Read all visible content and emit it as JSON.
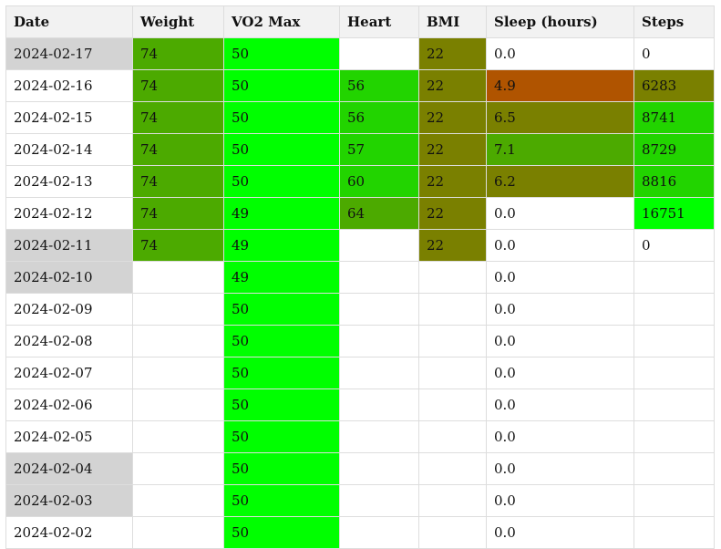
{
  "colors": {
    "header_bg": "#f2f2f2",
    "date_missing_bg": "#d3d3d3",
    "empty_bg": "#ffffff",
    "good_bright": "#00ff00",
    "good_mid": "#22d400",
    "good_dark": "#4caa00",
    "neutral_olive": "#7a8000",
    "bad_orange": "#b05400"
  },
  "table": {
    "headers": [
      "Date",
      "Weight",
      "VO2 Max",
      "Heart",
      "BMI",
      "Sleep (hours)",
      "Steps"
    ],
    "rows": [
      {
        "date": "2024-02-17",
        "date_bg": "#d3d3d3",
        "weight": "74",
        "weight_bg": "#4caa00",
        "vo2": "50",
        "vo2_bg": "#00ff00",
        "heart": "",
        "heart_bg": "#ffffff",
        "bmi": "22",
        "bmi_bg": "#7a8000",
        "sleep": "0.0",
        "sleep_bg": "#ffffff",
        "steps": "0",
        "steps_bg": "#ffffff"
      },
      {
        "date": "2024-02-16",
        "date_bg": "#ffffff",
        "weight": "74",
        "weight_bg": "#4caa00",
        "vo2": "50",
        "vo2_bg": "#00ff00",
        "heart": "56",
        "heart_bg": "#22d400",
        "bmi": "22",
        "bmi_bg": "#7a8000",
        "sleep": "4.9",
        "sleep_bg": "#b05400",
        "steps": "6283",
        "steps_bg": "#7a8000"
      },
      {
        "date": "2024-02-15",
        "date_bg": "#ffffff",
        "weight": "74",
        "weight_bg": "#4caa00",
        "vo2": "50",
        "vo2_bg": "#00ff00",
        "heart": "56",
        "heart_bg": "#22d400",
        "bmi": "22",
        "bmi_bg": "#7a8000",
        "sleep": "6.5",
        "sleep_bg": "#7a8000",
        "steps": "8741",
        "steps_bg": "#22d400"
      },
      {
        "date": "2024-02-14",
        "date_bg": "#ffffff",
        "weight": "74",
        "weight_bg": "#4caa00",
        "vo2": "50",
        "vo2_bg": "#00ff00",
        "heart": "57",
        "heart_bg": "#22d400",
        "bmi": "22",
        "bmi_bg": "#7a8000",
        "sleep": "7.1",
        "sleep_bg": "#4caa00",
        "steps": "8729",
        "steps_bg": "#22d400"
      },
      {
        "date": "2024-02-13",
        "date_bg": "#ffffff",
        "weight": "74",
        "weight_bg": "#4caa00",
        "vo2": "50",
        "vo2_bg": "#00ff00",
        "heart": "60",
        "heart_bg": "#22d400",
        "bmi": "22",
        "bmi_bg": "#7a8000",
        "sleep": "6.2",
        "sleep_bg": "#7a8000",
        "steps": "8816",
        "steps_bg": "#22d400"
      },
      {
        "date": "2024-02-12",
        "date_bg": "#ffffff",
        "weight": "74",
        "weight_bg": "#4caa00",
        "vo2": "49",
        "vo2_bg": "#00ff00",
        "heart": "64",
        "heart_bg": "#4caa00",
        "bmi": "22",
        "bmi_bg": "#7a8000",
        "sleep": "0.0",
        "sleep_bg": "#ffffff",
        "steps": "16751",
        "steps_bg": "#00ff00"
      },
      {
        "date": "2024-02-11",
        "date_bg": "#d3d3d3",
        "weight": "74",
        "weight_bg": "#4caa00",
        "vo2": "49",
        "vo2_bg": "#00ff00",
        "heart": "",
        "heart_bg": "#ffffff",
        "bmi": "22",
        "bmi_bg": "#7a8000",
        "sleep": "0.0",
        "sleep_bg": "#ffffff",
        "steps": "0",
        "steps_bg": "#ffffff"
      },
      {
        "date": "2024-02-10",
        "date_bg": "#d3d3d3",
        "weight": "",
        "weight_bg": "#ffffff",
        "vo2": "49",
        "vo2_bg": "#00ff00",
        "heart": "",
        "heart_bg": "#ffffff",
        "bmi": "",
        "bmi_bg": "#ffffff",
        "sleep": "0.0",
        "sleep_bg": "#ffffff",
        "steps": "",
        "steps_bg": "#ffffff"
      },
      {
        "date": "2024-02-09",
        "date_bg": "#ffffff",
        "weight": "",
        "weight_bg": "#ffffff",
        "vo2": "50",
        "vo2_bg": "#00ff00",
        "heart": "",
        "heart_bg": "#ffffff",
        "bmi": "",
        "bmi_bg": "#ffffff",
        "sleep": "0.0",
        "sleep_bg": "#ffffff",
        "steps": "",
        "steps_bg": "#ffffff"
      },
      {
        "date": "2024-02-08",
        "date_bg": "#ffffff",
        "weight": "",
        "weight_bg": "#ffffff",
        "vo2": "50",
        "vo2_bg": "#00ff00",
        "heart": "",
        "heart_bg": "#ffffff",
        "bmi": "",
        "bmi_bg": "#ffffff",
        "sleep": "0.0",
        "sleep_bg": "#ffffff",
        "steps": "",
        "steps_bg": "#ffffff"
      },
      {
        "date": "2024-02-07",
        "date_bg": "#ffffff",
        "weight": "",
        "weight_bg": "#ffffff",
        "vo2": "50",
        "vo2_bg": "#00ff00",
        "heart": "",
        "heart_bg": "#ffffff",
        "bmi": "",
        "bmi_bg": "#ffffff",
        "sleep": "0.0",
        "sleep_bg": "#ffffff",
        "steps": "",
        "steps_bg": "#ffffff"
      },
      {
        "date": "2024-02-06",
        "date_bg": "#ffffff",
        "weight": "",
        "weight_bg": "#ffffff",
        "vo2": "50",
        "vo2_bg": "#00ff00",
        "heart": "",
        "heart_bg": "#ffffff",
        "bmi": "",
        "bmi_bg": "#ffffff",
        "sleep": "0.0",
        "sleep_bg": "#ffffff",
        "steps": "",
        "steps_bg": "#ffffff"
      },
      {
        "date": "2024-02-05",
        "date_bg": "#ffffff",
        "weight": "",
        "weight_bg": "#ffffff",
        "vo2": "50",
        "vo2_bg": "#00ff00",
        "heart": "",
        "heart_bg": "#ffffff",
        "bmi": "",
        "bmi_bg": "#ffffff",
        "sleep": "0.0",
        "sleep_bg": "#ffffff",
        "steps": "",
        "steps_bg": "#ffffff"
      },
      {
        "date": "2024-02-04",
        "date_bg": "#d3d3d3",
        "weight": "",
        "weight_bg": "#ffffff",
        "vo2": "50",
        "vo2_bg": "#00ff00",
        "heart": "",
        "heart_bg": "#ffffff",
        "bmi": "",
        "bmi_bg": "#ffffff",
        "sleep": "0.0",
        "sleep_bg": "#ffffff",
        "steps": "",
        "steps_bg": "#ffffff"
      },
      {
        "date": "2024-02-03",
        "date_bg": "#d3d3d3",
        "weight": "",
        "weight_bg": "#ffffff",
        "vo2": "50",
        "vo2_bg": "#00ff00",
        "heart": "",
        "heart_bg": "#ffffff",
        "bmi": "",
        "bmi_bg": "#ffffff",
        "sleep": "0.0",
        "sleep_bg": "#ffffff",
        "steps": "",
        "steps_bg": "#ffffff"
      },
      {
        "date": "2024-02-02",
        "date_bg": "#ffffff",
        "weight": "",
        "weight_bg": "#ffffff",
        "vo2": "50",
        "vo2_bg": "#00ff00",
        "heart": "",
        "heart_bg": "#ffffff",
        "bmi": "",
        "bmi_bg": "#ffffff",
        "sleep": "0.0",
        "sleep_bg": "#ffffff",
        "steps": "",
        "steps_bg": "#ffffff"
      }
    ]
  }
}
